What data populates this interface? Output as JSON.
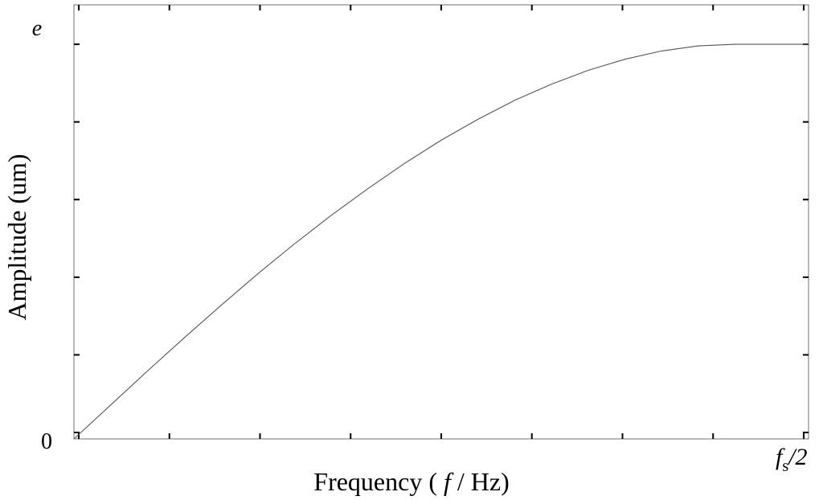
{
  "chart_data": {
    "type": "line",
    "title": "",
    "xlabel": "Frequency ( f / Hz)",
    "xlabel_parts": {
      "prefix": "Frequency ( ",
      "var": "f",
      "suffix": " / Hz)"
    },
    "ylabel": "Amplitude (um)",
    "x_tick_labels": {
      "start": "",
      "end_var": "f",
      "end_sub": "s",
      "end_suffix": "/2"
    },
    "y_tick_labels": {
      "bottom": "0",
      "top": "e"
    },
    "xlim": [
      0,
      1
    ],
    "ylim": [
      0,
      1.1
    ],
    "x_ticks_count": 8,
    "y_ticks_count": 5,
    "grid": false,
    "line_color": "#555555",
    "series": [
      {
        "x": [
          0,
          0.05,
          0.1,
          0.15,
          0.2,
          0.25,
          0.3,
          0.35,
          0.4,
          0.45,
          0.5,
          0.55,
          0.6,
          0.65,
          0.7,
          0.75,
          0.8,
          0.85,
          0.9,
          0.95,
          1.0
        ],
        "values": [
          0,
          0.086,
          0.172,
          0.256,
          0.338,
          0.418,
          0.494,
          0.566,
          0.634,
          0.698,
          0.757,
          0.81,
          0.858,
          0.899,
          0.934,
          0.962,
          0.983,
          0.996,
          1.0,
          1.0,
          1.0
        ]
      }
    ]
  }
}
